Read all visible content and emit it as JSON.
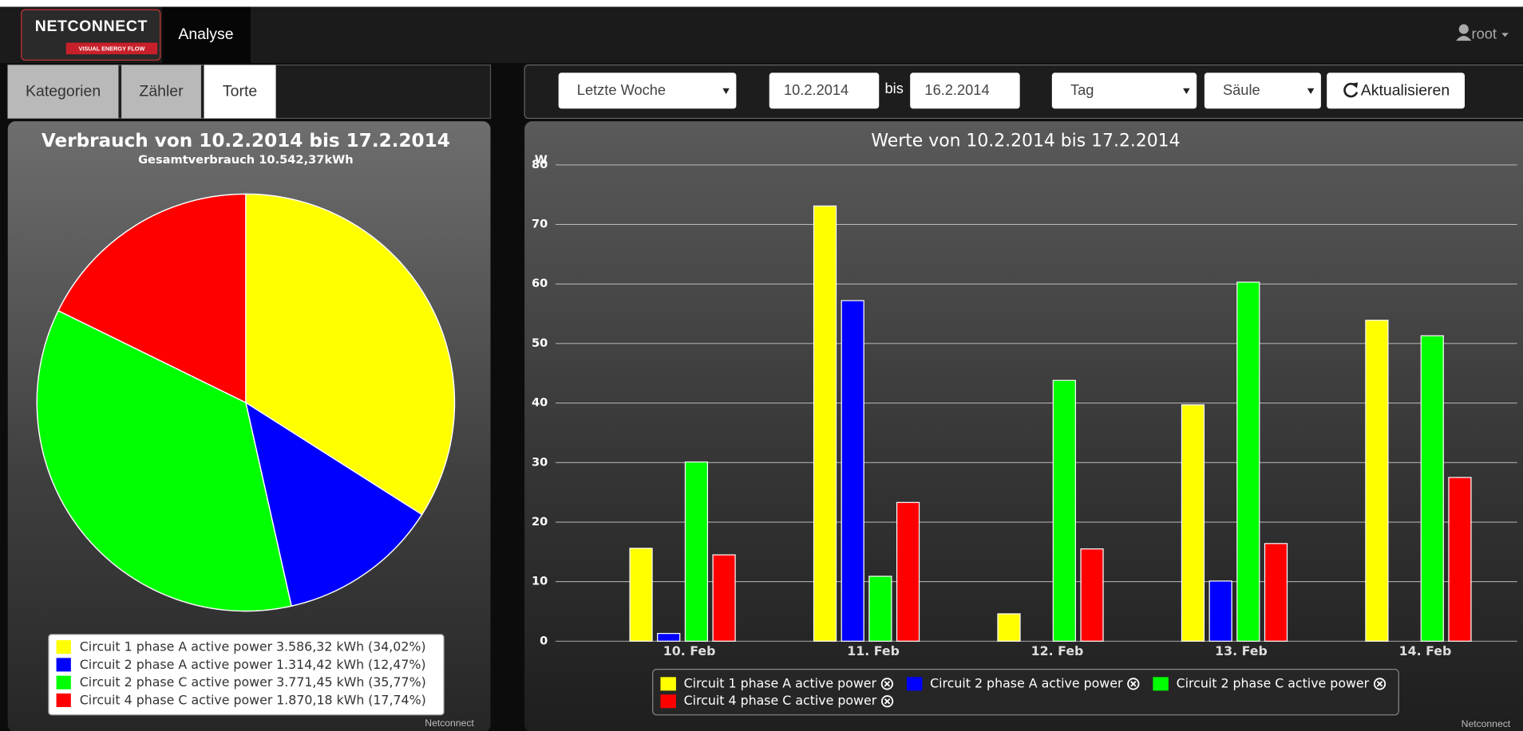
{
  "nav": {
    "logo": "NETCONNECT",
    "logo_tagline": "VISUAL ENERGY FLOW",
    "active_tab": "Analyse",
    "user": "root"
  },
  "tabs": [
    "Kategorien",
    "Zähler",
    "Torte"
  ],
  "controls": {
    "period": "Letzte Woche",
    "from": "10.2.2014",
    "to_label": "bis",
    "to": "16.2.2014",
    "interval": "Tag",
    "chart_style": "Säule",
    "refresh": "Aktualisieren"
  },
  "chart_data": [
    {
      "type": "pie",
      "title": "Verbrauch von 10.2.2014 bis 17.2.2014",
      "subtitle": "Gesamtverbrauch 10.542,37kWh",
      "categories": [
        "Circuit 1 phase A active power",
        "Circuit 2 phase A active power",
        "Circuit 2 phase C active power",
        "Circuit 4 phase C active power"
      ],
      "energy_labels": [
        "3.586,32 kWh",
        "1.314,42 kWh",
        "3.771,45 kWh",
        "1.870,18 kWh"
      ],
      "values": [
        34.02,
        12.47,
        35.77,
        17.74
      ],
      "value_labels": [
        "(34,02%)",
        "(12,47%)",
        "(35,77%)",
        "(17,74%)"
      ],
      "colors": [
        "#ffff00",
        "#0000ff",
        "#00ff00",
        "#ff0000"
      ],
      "credit": "Netconnect"
    },
    {
      "type": "bar",
      "title": "Werte von 10.2.2014 bis 17.2.2014",
      "ylabel": "W",
      "categories": [
        "10. Feb",
        "11. Feb",
        "12. Feb",
        "13. Feb",
        "14. Feb"
      ],
      "series": [
        {
          "name": "Circuit 1 phase A active power",
          "color": "#ffff00",
          "values": [
            15.6,
            73.1,
            4.6,
            39.7,
            53.9
          ]
        },
        {
          "name": "Circuit 2 phase A active power",
          "color": "#0000ff",
          "values": [
            1.3,
            57.2,
            null,
            10.1,
            null
          ]
        },
        {
          "name": "Circuit 2 phase C active power",
          "color": "#00ff00",
          "values": [
            30.1,
            10.9,
            43.8,
            60.3,
            51.3
          ]
        },
        {
          "name": "Circuit 4 phase C active power",
          "color": "#ff0000",
          "values": [
            14.5,
            23.3,
            15.5,
            16.4,
            27.5
          ]
        }
      ],
      "ylim": [
        0,
        80
      ],
      "yticks": [
        0,
        10,
        20,
        30,
        40,
        50,
        60,
        70,
        80
      ],
      "grid": true,
      "credit": "Netconnect"
    }
  ]
}
